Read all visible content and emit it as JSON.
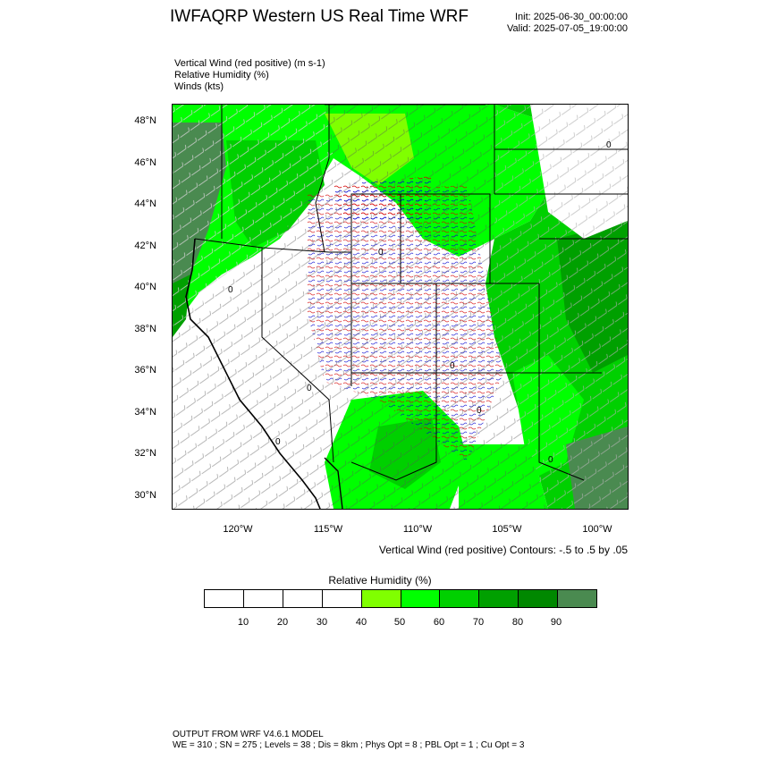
{
  "header": {
    "title": "IWFAQRP Western US Real Time WRF",
    "init": "Init: 2025-06-30_00:00:00",
    "valid": "Valid: 2025-07-05_19:00:00"
  },
  "fields": [
    "Vertical Wind (red positive)   (m s-1)",
    "Relative Humidity   (%)",
    "Winds   (kts)"
  ],
  "map": {
    "lat_labels": [
      "48°N",
      "46°N",
      "44°N",
      "42°N",
      "40°N",
      "38°N",
      "36°N",
      "34°N",
      "32°N",
      "30°N"
    ],
    "lon_labels": [
      "120°W",
      "115°W",
      "110°W",
      "105°W",
      "100°W"
    ],
    "contour_note": "Vertical Wind (red positive) Contours: -.5 to .5 by .05",
    "contour_label": "0",
    "colors": {
      "land_dry": "#ffffff",
      "rh_40": "#80ff00",
      "rh_50": "#00ff00",
      "rh_60": "#00d000",
      "rh_70": "#00a000",
      "rh_80": "#008800",
      "rh_90": "#4a8a50",
      "updraft": "#d40000",
      "downdraft": "#0000d0"
    }
  },
  "legend": {
    "title": "Relative Humidity   (%)",
    "labels": [
      "10",
      "20",
      "30",
      "40",
      "50",
      "60",
      "70",
      "80",
      "90"
    ],
    "colors": [
      "#ffffff",
      "#ffffff",
      "#ffffff",
      "#ffffff",
      "#80ff00",
      "#00ff00",
      "#00d000",
      "#00a000",
      "#008800",
      "#4a8a50"
    ]
  },
  "footer": {
    "line1": "OUTPUT FROM WRF V4.6.1 MODEL",
    "line2": "WE = 310 ; SN = 275 ; Levels = 38 ; Dis = 8km ; Phys Opt = 8 ; PBL Opt = 1 ; Cu Opt = 3"
  }
}
